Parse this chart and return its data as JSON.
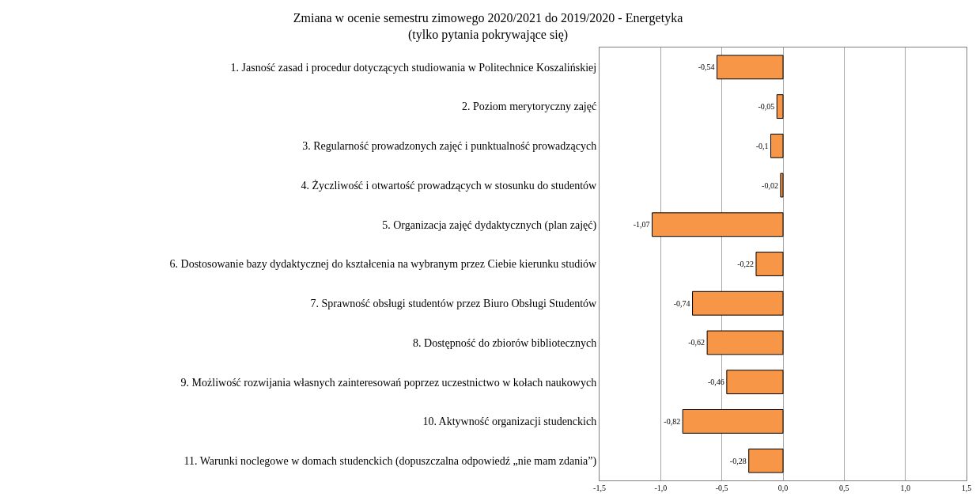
{
  "chart_data": {
    "type": "bar",
    "orientation": "horizontal",
    "title": "Zmiana w ocenie semestru zimowego 2020/2021 do 2019/2020 - Energetyka\n(tylko pytania pokrywające się)",
    "categories": [
      "1. Jasność zasad i procedur dotyczących studiowania w Politechnice Koszalińskiej",
      "2. Poziom merytoryczny zajęć",
      "3. Regularność prowadzonych zajęć i punktualność prowadzących",
      "4. Życzliwość i otwartość prowadzących w stosunku do studentów",
      "5. Organizacja zajęć dydaktycznych (plan zajęć)",
      "6. Dostosowanie bazy dydaktycznej do kształcenia na wybranym przez Ciebie kierunku studiów",
      "7. Sprawność obsługi studentów przez Biuro Obsługi Studentów",
      "8. Dostępność do zbiorów bibliotecznych",
      "9. Możliwość rozwijania własnych zainteresowań poprzez uczestnictwo w kołach naukowych",
      "10. Aktywność organizacji studenckich",
      "11. Warunki noclegowe w domach studenckich (dopuszczalna odpowiedź „nie mam zdania”)"
    ],
    "values": [
      -0.54,
      -0.05,
      -0.1,
      -0.02,
      -1.07,
      -0.22,
      -0.74,
      -0.62,
      -0.46,
      -0.82,
      -0.28
    ],
    "value_labels": [
      "-0,54",
      "-0,05",
      "-0,1",
      "-0,02",
      "-1,07",
      "-0,22",
      "-0,74",
      "-0,62",
      "-0,46",
      "-0,82",
      "-0,28"
    ],
    "color": "#f79646",
    "xlim": [
      -1.5,
      1.5
    ],
    "xticks": [
      {
        "value": -1.5,
        "label": "-1,5"
      },
      {
        "value": -1,
        "label": "-1,0"
      },
      {
        "value": -0.5,
        "label": "-0,5"
      },
      {
        "value": 0,
        "label": "0,0"
      },
      {
        "value": 0.5,
        "label": "0,5"
      },
      {
        "value": 1,
        "label": "1,0"
      },
      {
        "value": 1.5,
        "label": "1,5"
      }
    ],
    "grid": "x",
    "legend": false
  }
}
